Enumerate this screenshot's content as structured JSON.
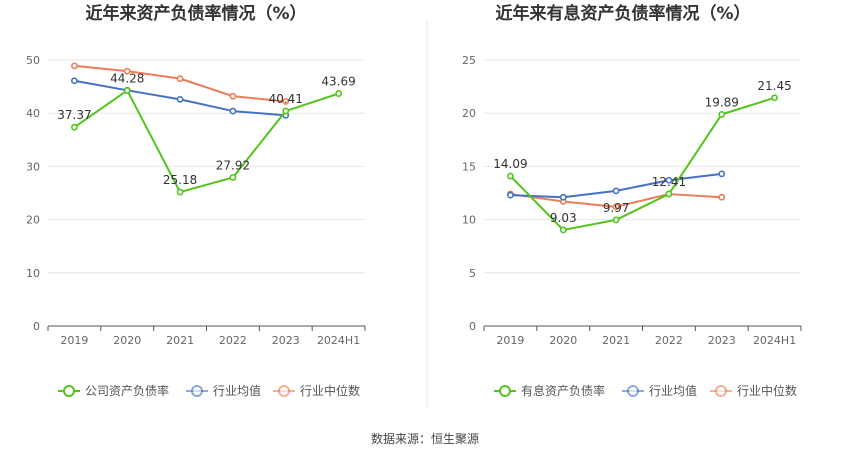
{
  "source": "数据来源：恒生聚源",
  "chart_data": [
    {
      "type": "line",
      "title": "近年来资产负债率情况（%）",
      "categories": [
        "2019",
        "2020",
        "2021",
        "2022",
        "2023",
        "2024H1"
      ],
      "ylim": [
        0,
        50
      ],
      "yticks": [
        0,
        10,
        20,
        30,
        40,
        50
      ],
      "series": [
        {
          "name": "公司资产负债率",
          "color": "#52c41a",
          "values": [
            37.37,
            44.28,
            25.18,
            27.92,
            40.41,
            43.69
          ],
          "labels": [
            "37.37",
            "44.28",
            "25.18",
            "27.92",
            "40.41",
            "43.69"
          ],
          "label_pos": [
            "above",
            "above",
            "above",
            "above",
            "above",
            "above"
          ]
        },
        {
          "name": "行业均值",
          "color": "#4472c4",
          "values": [
            46.1,
            44.3,
            42.6,
            40.4,
            39.6,
            null
          ]
        },
        {
          "name": "行业中位数",
          "color": "#ed7d55",
          "values": [
            48.9,
            47.9,
            46.5,
            43.2,
            42.2,
            null
          ]
        }
      ]
    },
    {
      "type": "line",
      "title": "近年来有息资产负债率情况（%）",
      "categories": [
        "2019",
        "2020",
        "2021",
        "2022",
        "2023",
        "2024H1"
      ],
      "ylim": [
        0,
        25
      ],
      "yticks": [
        0,
        5,
        10,
        15,
        20,
        25
      ],
      "series": [
        {
          "name": "有息资产负债率",
          "color": "#52c41a",
          "values": [
            14.09,
            9.03,
            9.97,
            12.41,
            19.89,
            21.45
          ],
          "labels": [
            "14.09",
            "9.03",
            "9.97",
            "12.41",
            "19.89",
            "21.45"
          ],
          "label_pos": [
            "above",
            "above",
            "above",
            "above",
            "above",
            "above"
          ]
        },
        {
          "name": "行业均值",
          "color": "#4472c4",
          "values": [
            12.3,
            12.1,
            12.7,
            13.7,
            14.3,
            null
          ]
        },
        {
          "name": "行业中位数",
          "color": "#ed7d55",
          "values": [
            12.4,
            11.7,
            11.2,
            12.4,
            12.1,
            null
          ]
        }
      ]
    }
  ]
}
